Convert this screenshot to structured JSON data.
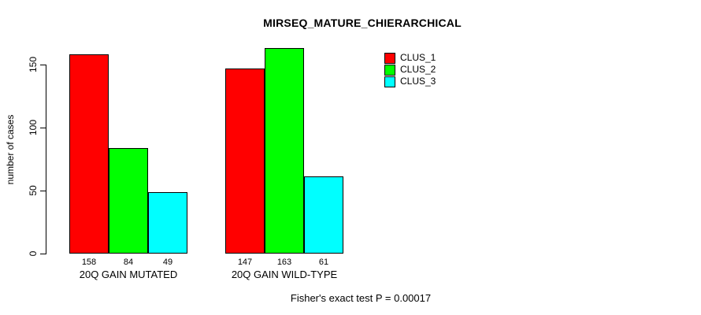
{
  "chart_data": {
    "type": "bar",
    "title": "MIRSEQ_MATURE_CHIERARCHICAL",
    "xlabel": "",
    "ylabel": "number of cases",
    "ylim": [
      0,
      150
    ],
    "yticks": [
      0,
      50,
      100,
      150
    ],
    "grid": false,
    "legend_position": "top-right",
    "categories": [
      "20Q GAIN MUTATED",
      "20Q GAIN WILD-TYPE"
    ],
    "series": [
      {
        "name": "CLUS_1",
        "color": "#ff0000",
        "values": [
          158,
          147
        ]
      },
      {
        "name": "CLUS_2",
        "color": "#00ff00",
        "values": [
          84,
          163
        ]
      },
      {
        "name": "CLUS_3",
        "color": "#00ffff",
        "values": [
          49,
          61
        ]
      }
    ],
    "bar_value_labels": [
      [
        158,
        84,
        49
      ],
      [
        147,
        163,
        61
      ]
    ],
    "annotation": "Fisher's exact test P = 0.00017"
  }
}
